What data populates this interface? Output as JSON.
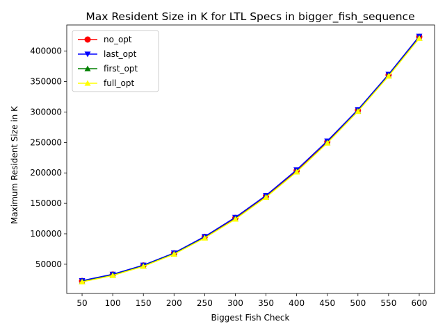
{
  "chart_data": {
    "type": "line",
    "title": "Max Resident Size in K for LTL Specs in bigger_fish_sequence",
    "xlabel": "Biggest Fish Check",
    "ylabel": "Maximum Resident Size in K",
    "x": [
      50,
      100,
      150,
      200,
      250,
      300,
      350,
      400,
      450,
      500,
      550,
      600
    ],
    "xlim": [
      25,
      625
    ],
    "ylim": [
      2000,
      443000
    ],
    "yticks": [
      50000,
      100000,
      150000,
      200000,
      250000,
      300000,
      350000,
      400000
    ],
    "grid": false,
    "legend_position": "top-left",
    "series": [
      {
        "name": "no_opt",
        "color": "#ff0000",
        "marker": "circle",
        "values": [
          22500,
          33000,
          48000,
          68000,
          95000,
          126000,
          162000,
          203500,
          251000,
          303000,
          361000,
          423500
        ]
      },
      {
        "name": "last_opt",
        "color": "#0000ff",
        "marker": "triangle-down",
        "values": [
          23000,
          33500,
          48500,
          68500,
          95500,
          127000,
          163000,
          205000,
          252500,
          304000,
          362000,
          424500
        ]
      },
      {
        "name": "first_opt",
        "color": "#008000",
        "marker": "triangle-up",
        "values": [
          21500,
          32000,
          47000,
          67000,
          93500,
          124500,
          160500,
          202000,
          249500,
          301500,
          359500,
          421500
        ]
      },
      {
        "name": "full_opt",
        "color": "#ffff00",
        "marker": "triangle-up",
        "values": [
          21000,
          31500,
          46500,
          66500,
          93000,
          124000,
          160000,
          201500,
          249000,
          301000,
          359000,
          421000
        ]
      }
    ]
  }
}
